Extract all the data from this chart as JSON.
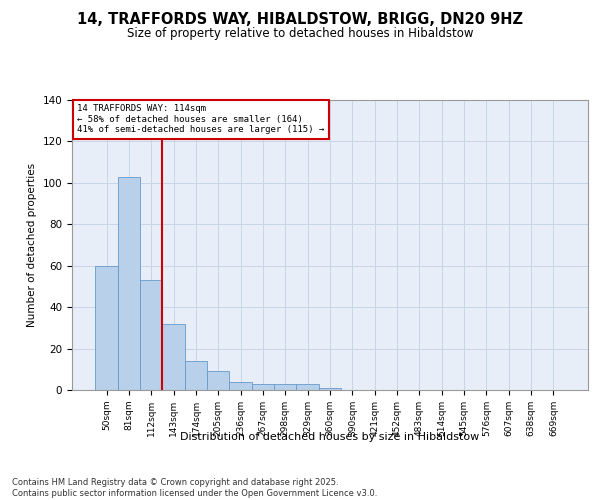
{
  "title": "14, TRAFFORDS WAY, HIBALDSTOW, BRIGG, DN20 9HZ",
  "subtitle": "Size of property relative to detached houses in Hibaldstow",
  "xlabel": "Distribution of detached houses by size in Hibaldstow",
  "ylabel": "Number of detached properties",
  "categories": [
    "50sqm",
    "81sqm",
    "112sqm",
    "143sqm",
    "174sqm",
    "205sqm",
    "236sqm",
    "267sqm",
    "298sqm",
    "329sqm",
    "360sqm",
    "390sqm",
    "421sqm",
    "452sqm",
    "483sqm",
    "514sqm",
    "545sqm",
    "576sqm",
    "607sqm",
    "638sqm",
    "669sqm"
  ],
  "values": [
    60,
    103,
    53,
    32,
    14,
    9,
    4,
    3,
    3,
    3,
    1,
    0,
    0,
    0,
    0,
    0,
    0,
    0,
    0,
    0,
    0
  ],
  "bar_color": "#b8d0ea",
  "bar_edge_color": "#6699cc",
  "vline_color": "#cc0000",
  "vline_index": 2,
  "annotation_text": "14 TRAFFORDS WAY: 114sqm\n← 58% of detached houses are smaller (164)\n41% of semi-detached houses are larger (115) →",
  "annotation_box_color": "#cc0000",
  "ylim": [
    0,
    140
  ],
  "yticks": [
    0,
    20,
    40,
    60,
    80,
    100,
    120,
    140
  ],
  "grid_color": "#c8d4e8",
  "bg_color": "#e8eef8",
  "footer": "Contains HM Land Registry data © Crown copyright and database right 2025.\nContains public sector information licensed under the Open Government Licence v3.0."
}
